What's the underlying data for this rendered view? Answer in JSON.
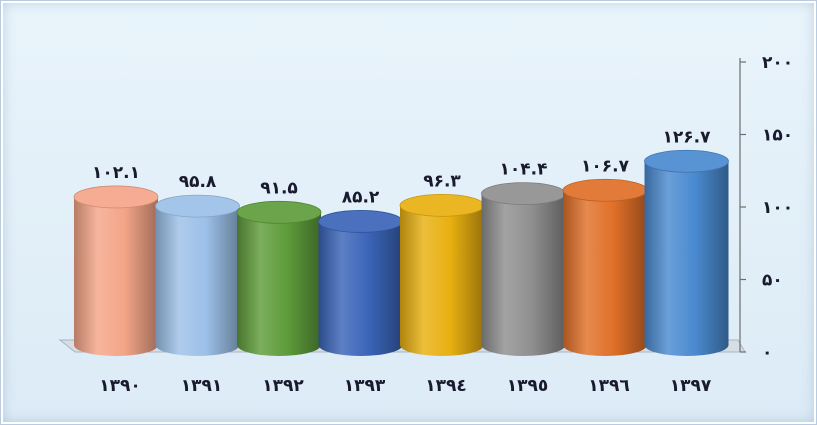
{
  "chart_data": {
    "type": "bar",
    "style": "3d-cylinder",
    "categories": [
      "۱۳۹۰",
      "۱۳۹۱",
      "۱۳۹۲",
      "۱۳۹۳",
      "۱۳۹٤",
      "۱۳۹٥",
      "۱۳۹٦",
      "۱۳۹۷"
    ],
    "values": [
      102.1,
      95.8,
      91.5,
      85.2,
      96.3,
      104.4,
      106.7,
      126.7
    ],
    "value_labels": [
      "۱۰۲.۱",
      "۹۵.۸",
      "۹۱.۵",
      "۸۵.۲",
      "۹۶.۳",
      "۱۰۴.۴",
      "۱۰۶.۷",
      "۱۲۶.۷"
    ],
    "colors": [
      "#f4a588",
      "#9cc0e8",
      "#5e9c3a",
      "#3a64b8",
      "#e8b010",
      "#8f8f8f",
      "#e07028",
      "#4a8ad0"
    ],
    "yticks": [
      0,
      50,
      100,
      150,
      200
    ],
    "ytick_labels": [
      "۰",
      "۵۰",
      "۱۰۰",
      "۱۵۰",
      "۲۰۰"
    ],
    "ylim": [
      0,
      200
    ],
    "axis_position": "right",
    "title": "",
    "xlabel": "",
    "ylabel": ""
  }
}
